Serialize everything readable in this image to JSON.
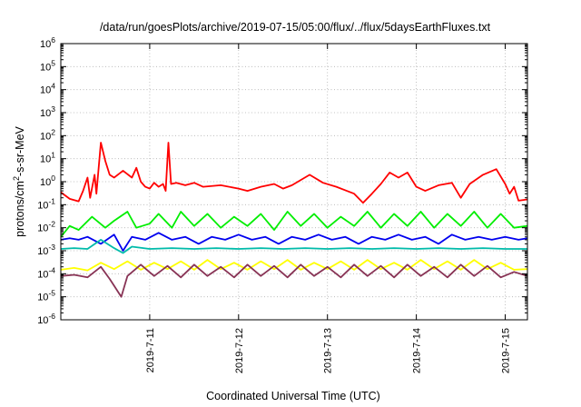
{
  "chart_data": {
    "type": "line",
    "title": "/data/run/goesPlots/archive/2019-07-15/05:00/flux/../flux/5daysEarthFluxes.txt",
    "xlabel": "Coordinated Universal Time (UTC)",
    "ylabel_main": "protons/cm",
    "ylabel_sup": "2",
    "ylabel_rest": "-s-sr-MeV",
    "yscale": "log",
    "ylim": [
      1e-06,
      1000000.0
    ],
    "y_ticks": [
      {
        "base": "10",
        "exp": "-6"
      },
      {
        "base": "10",
        "exp": "-5"
      },
      {
        "base": "10",
        "exp": "-4"
      },
      {
        "base": "10",
        "exp": "-3"
      },
      {
        "base": "10",
        "exp": "-2"
      },
      {
        "base": "10",
        "exp": "-1"
      },
      {
        "base": "10",
        "exp": "0"
      },
      {
        "base": "10",
        "exp": "1"
      },
      {
        "base": "10",
        "exp": "2"
      },
      {
        "base": "10",
        "exp": "3"
      },
      {
        "base": "10",
        "exp": "4"
      },
      {
        "base": "10",
        "exp": "5"
      },
      {
        "base": "10",
        "exp": "6"
      }
    ],
    "x_ticks": [
      "2019-7-11",
      "2019-7-12",
      "2019-7-13",
      "2019-7-14",
      "2019-7-15"
    ],
    "xlim": [
      "2019-07-10 00:00",
      "2019-07-15 06:00"
    ],
    "grid": true,
    "series": [
      {
        "color": "#ff0000",
        "points": [
          [
            0.0,
            0.35
          ],
          [
            0.1,
            0.18
          ],
          [
            0.2,
            0.14
          ],
          [
            0.25,
            0.4
          ],
          [
            0.3,
            1.5
          ],
          [
            0.33,
            0.2
          ],
          [
            0.38,
            2.0
          ],
          [
            0.4,
            0.3
          ],
          [
            0.45,
            50
          ],
          [
            0.5,
            8
          ],
          [
            0.55,
            2
          ],
          [
            0.6,
            1.5
          ],
          [
            0.7,
            3
          ],
          [
            0.8,
            1.5
          ],
          [
            0.85,
            4
          ],
          [
            0.9,
            1.0
          ],
          [
            0.95,
            0.6
          ],
          [
            1.0,
            0.5
          ],
          [
            1.05,
            0.9
          ],
          [
            1.1,
            0.6
          ],
          [
            1.15,
            0.8
          ],
          [
            1.18,
            0.4
          ],
          [
            1.21,
            50
          ],
          [
            1.24,
            0.8
          ],
          [
            1.3,
            0.9
          ],
          [
            1.4,
            0.7
          ],
          [
            1.5,
            0.9
          ],
          [
            1.6,
            0.6
          ],
          [
            1.8,
            0.7
          ],
          [
            2.0,
            0.5
          ],
          [
            2.1,
            0.4
          ],
          [
            2.25,
            0.6
          ],
          [
            2.4,
            0.8
          ],
          [
            2.5,
            0.5
          ],
          [
            2.6,
            0.7
          ],
          [
            2.8,
            2.0
          ],
          [
            2.95,
            0.9
          ],
          [
            3.1,
            0.6
          ],
          [
            3.3,
            0.3
          ],
          [
            3.4,
            0.12
          ],
          [
            3.5,
            0.3
          ],
          [
            3.6,
            0.8
          ],
          [
            3.7,
            2.5
          ],
          [
            3.8,
            1.5
          ],
          [
            3.9,
            2.5
          ],
          [
            4.0,
            0.6
          ],
          [
            4.1,
            0.4
          ],
          [
            4.25,
            0.7
          ],
          [
            4.4,
            0.9
          ],
          [
            4.5,
            0.2
          ],
          [
            4.6,
            0.8
          ],
          [
            4.75,
            2.0
          ],
          [
            4.9,
            3.5
          ],
          [
            5.0,
            0.8
          ],
          [
            5.05,
            0.3
          ],
          [
            5.1,
            0.6
          ],
          [
            5.15,
            0.15
          ],
          [
            5.25,
            0.17
          ]
        ]
      },
      {
        "color": "#00ee00",
        "points": [
          [
            0.0,
            0.004
          ],
          [
            0.1,
            0.012
          ],
          [
            0.2,
            0.008
          ],
          [
            0.35,
            0.03
          ],
          [
            0.5,
            0.01
          ],
          [
            0.6,
            0.02
          ],
          [
            0.75,
            0.05
          ],
          [
            0.85,
            0.01
          ],
          [
            1.0,
            0.015
          ],
          [
            1.1,
            0.04
          ],
          [
            1.25,
            0.01
          ],
          [
            1.35,
            0.05
          ],
          [
            1.5,
            0.012
          ],
          [
            1.65,
            0.04
          ],
          [
            1.8,
            0.01
          ],
          [
            1.95,
            0.03
          ],
          [
            2.1,
            0.012
          ],
          [
            2.25,
            0.04
          ],
          [
            2.4,
            0.008
          ],
          [
            2.55,
            0.05
          ],
          [
            2.7,
            0.012
          ],
          [
            2.85,
            0.04
          ],
          [
            3.0,
            0.01
          ],
          [
            3.15,
            0.03
          ],
          [
            3.3,
            0.012
          ],
          [
            3.45,
            0.05
          ],
          [
            3.6,
            0.01
          ],
          [
            3.75,
            0.04
          ],
          [
            3.9,
            0.012
          ],
          [
            4.05,
            0.05
          ],
          [
            4.2,
            0.01
          ],
          [
            4.35,
            0.04
          ],
          [
            4.5,
            0.012
          ],
          [
            4.65,
            0.05
          ],
          [
            4.8,
            0.01
          ],
          [
            4.95,
            0.04
          ],
          [
            5.1,
            0.01
          ],
          [
            5.25,
            0.012
          ]
        ]
      },
      {
        "color": "#0000ee",
        "points": [
          [
            0.0,
            0.003
          ],
          [
            0.1,
            0.0035
          ],
          [
            0.2,
            0.003
          ],
          [
            0.3,
            0.004
          ],
          [
            0.45,
            0.002
          ],
          [
            0.6,
            0.005
          ],
          [
            0.7,
            0.001
          ],
          [
            0.8,
            0.004
          ],
          [
            0.95,
            0.003
          ],
          [
            1.1,
            0.006
          ],
          [
            1.25,
            0.003
          ],
          [
            1.4,
            0.004
          ],
          [
            1.55,
            0.002
          ],
          [
            1.7,
            0.004
          ],
          [
            1.85,
            0.003
          ],
          [
            2.0,
            0.005
          ],
          [
            2.15,
            0.003
          ],
          [
            2.3,
            0.004
          ],
          [
            2.45,
            0.002
          ],
          [
            2.6,
            0.004
          ],
          [
            2.75,
            0.003
          ],
          [
            2.9,
            0.005
          ],
          [
            3.05,
            0.003
          ],
          [
            3.2,
            0.004
          ],
          [
            3.35,
            0.002
          ],
          [
            3.5,
            0.004
          ],
          [
            3.65,
            0.003
          ],
          [
            3.8,
            0.005
          ],
          [
            3.95,
            0.003
          ],
          [
            4.1,
            0.004
          ],
          [
            4.25,
            0.002
          ],
          [
            4.4,
            0.005
          ],
          [
            4.55,
            0.003
          ],
          [
            4.7,
            0.004
          ],
          [
            4.85,
            0.003
          ],
          [
            5.0,
            0.004
          ],
          [
            5.15,
            0.003
          ],
          [
            5.25,
            0.0035
          ]
        ]
      },
      {
        "color": "#00bbaa",
        "points": [
          [
            0.0,
            0.0012
          ],
          [
            0.15,
            0.0013
          ],
          [
            0.3,
            0.0012
          ],
          [
            0.45,
            0.003
          ],
          [
            0.6,
            0.0013
          ],
          [
            0.7,
            0.0008
          ],
          [
            0.8,
            0.0015
          ],
          [
            1.0,
            0.0012
          ],
          [
            1.25,
            0.0013
          ],
          [
            1.5,
            0.0012
          ],
          [
            1.75,
            0.0013
          ],
          [
            2.0,
            0.0012
          ],
          [
            2.25,
            0.0013
          ],
          [
            2.5,
            0.0012
          ],
          [
            2.75,
            0.0013
          ],
          [
            3.0,
            0.0012
          ],
          [
            3.25,
            0.0013
          ],
          [
            3.5,
            0.0012
          ],
          [
            3.75,
            0.0013
          ],
          [
            4.0,
            0.0012
          ],
          [
            4.25,
            0.0013
          ],
          [
            4.5,
            0.0012
          ],
          [
            4.75,
            0.0013
          ],
          [
            5.0,
            0.0012
          ],
          [
            5.25,
            0.0012
          ]
        ]
      },
      {
        "color": "#ffff00",
        "points": [
          [
            0.0,
            0.00015
          ],
          [
            0.15,
            0.00018
          ],
          [
            0.3,
            0.00014
          ],
          [
            0.45,
            0.0003
          ],
          [
            0.6,
            0.00016
          ],
          [
            0.75,
            0.00035
          ],
          [
            0.9,
            0.00015
          ],
          [
            1.05,
            0.0003
          ],
          [
            1.2,
            0.00016
          ],
          [
            1.35,
            0.00035
          ],
          [
            1.5,
            0.00015
          ],
          [
            1.65,
            0.0004
          ],
          [
            1.8,
            0.00016
          ],
          [
            1.95,
            0.0003
          ],
          [
            2.1,
            0.00015
          ],
          [
            2.25,
            0.00035
          ],
          [
            2.4,
            0.00016
          ],
          [
            2.55,
            0.0004
          ],
          [
            2.7,
            0.00015
          ],
          [
            2.85,
            0.0003
          ],
          [
            3.0,
            0.00016
          ],
          [
            3.15,
            0.00035
          ],
          [
            3.3,
            0.00015
          ],
          [
            3.45,
            0.0004
          ],
          [
            3.6,
            0.00016
          ],
          [
            3.75,
            0.0003
          ],
          [
            3.9,
            0.00015
          ],
          [
            4.05,
            0.0004
          ],
          [
            4.2,
            0.00016
          ],
          [
            4.35,
            0.00035
          ],
          [
            4.5,
            0.00015
          ],
          [
            4.65,
            0.0004
          ],
          [
            4.8,
            0.00016
          ],
          [
            4.95,
            0.0003
          ],
          [
            5.1,
            0.00015
          ],
          [
            5.25,
            0.00016
          ]
        ]
      },
      {
        "color": "#883355",
        "points": [
          [
            0.0,
            8e-05
          ],
          [
            0.15,
            9e-05
          ],
          [
            0.3,
            7e-05
          ],
          [
            0.45,
            0.0002
          ],
          [
            0.55,
            6e-05
          ],
          [
            0.68,
            1e-05
          ],
          [
            0.75,
            8e-05
          ],
          [
            0.9,
            0.00025
          ],
          [
            1.05,
            8e-05
          ],
          [
            1.2,
            0.00022
          ],
          [
            1.35,
            7e-05
          ],
          [
            1.5,
            0.00025
          ],
          [
            1.65,
            8e-05
          ],
          [
            1.8,
            0.0002
          ],
          [
            1.95,
            7e-05
          ],
          [
            2.1,
            0.00025
          ],
          [
            2.25,
            8e-05
          ],
          [
            2.4,
            0.00022
          ],
          [
            2.55,
            7e-05
          ],
          [
            2.7,
            0.00025
          ],
          [
            2.85,
            8e-05
          ],
          [
            3.0,
            0.0002
          ],
          [
            3.15,
            7e-05
          ],
          [
            3.3,
            0.00025
          ],
          [
            3.45,
            8e-05
          ],
          [
            3.6,
            0.00022
          ],
          [
            3.75,
            7e-05
          ],
          [
            3.9,
            0.00025
          ],
          [
            4.05,
            8e-05
          ],
          [
            4.2,
            0.0002
          ],
          [
            4.35,
            7e-05
          ],
          [
            4.5,
            0.00025
          ],
          [
            4.65,
            8e-05
          ],
          [
            4.8,
            0.00022
          ],
          [
            4.95,
            7e-05
          ],
          [
            5.1,
            0.00012
          ],
          [
            5.25,
            8e-05
          ]
        ]
      }
    ]
  }
}
